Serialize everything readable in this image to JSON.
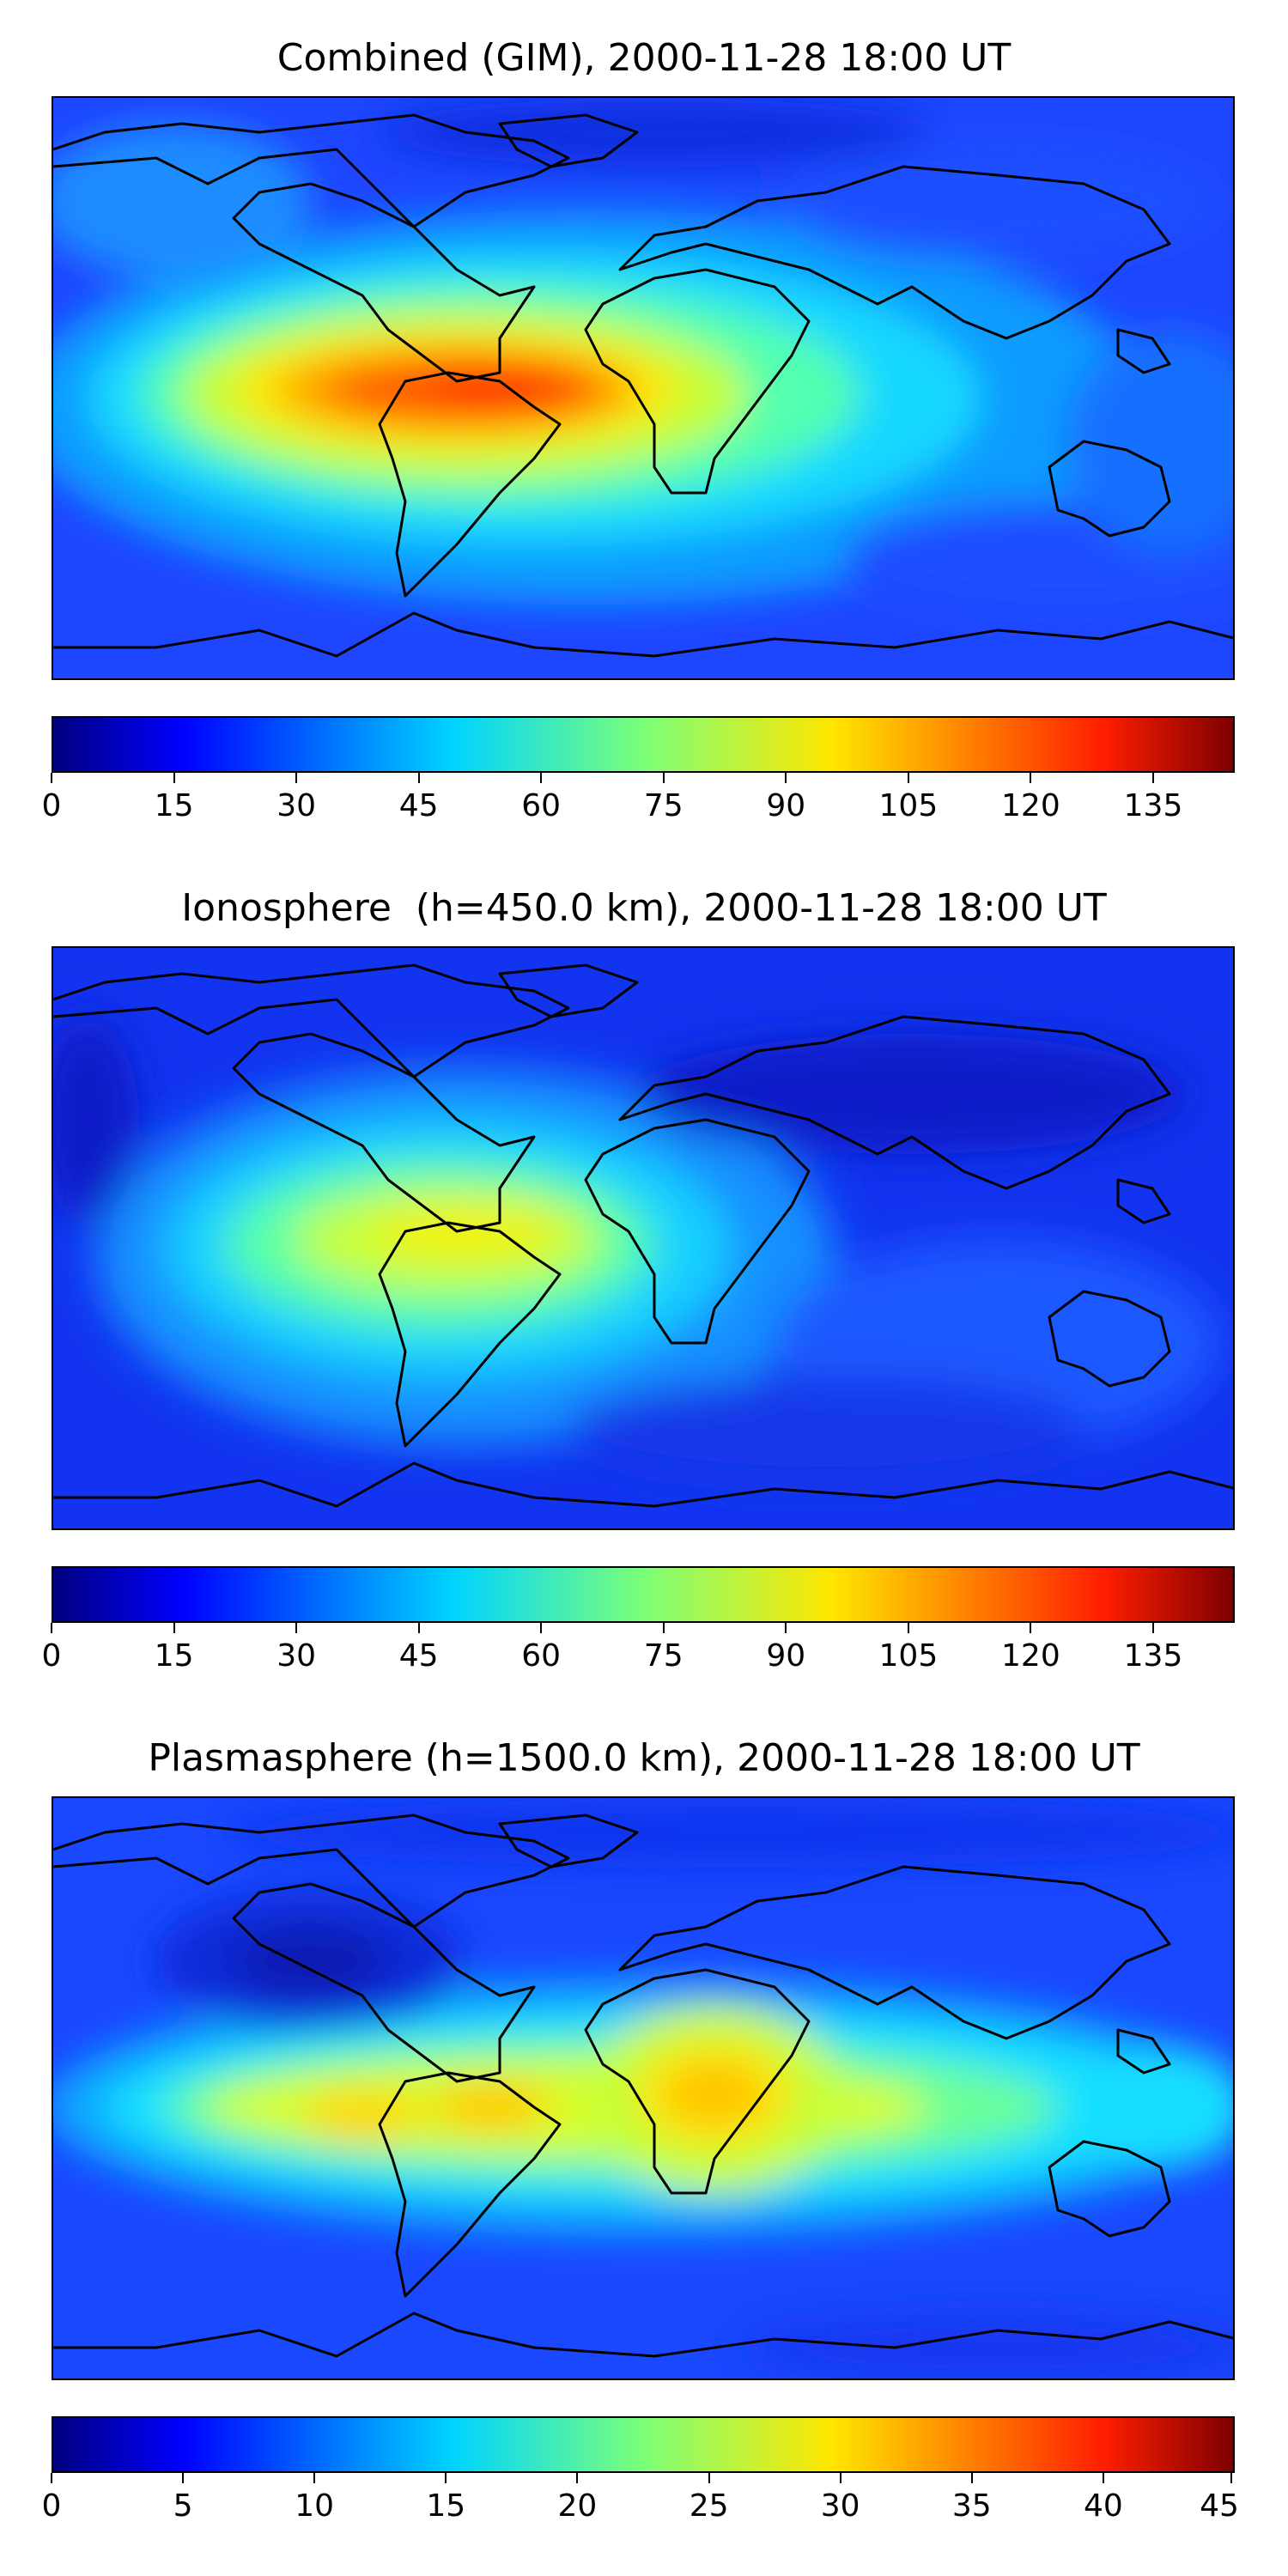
{
  "chart_data": [
    {
      "type": "heatmap",
      "title": "Combined (GIM), 2000-11-28 18:00 UT",
      "colorbar": {
        "ticks": [
          0,
          15,
          30,
          45,
          60,
          75,
          90,
          105,
          120,
          135
        ],
        "range": [
          0,
          145
        ],
        "levels": 29
      },
      "colormap": "jet"
    },
    {
      "type": "heatmap",
      "title": "Ionosphere  (h=450.0 km), 2000-11-28 18:00 UT",
      "colorbar": {
        "ticks": [
          0,
          15,
          30,
          45,
          60,
          75,
          90,
          105,
          120,
          135
        ],
        "range": [
          0,
          145
        ],
        "levels": 29
      },
      "colormap": "jet"
    },
    {
      "type": "heatmap",
      "title": "Plasmasphere (h=1500.0 km), 2000-11-28 18:00 UT",
      "colorbar": {
        "ticks": [
          0,
          5,
          10,
          15,
          20,
          25,
          30,
          35,
          40,
          45
        ],
        "range": [
          0,
          45
        ],
        "levels": 18
      },
      "colormap": "jet"
    }
  ]
}
